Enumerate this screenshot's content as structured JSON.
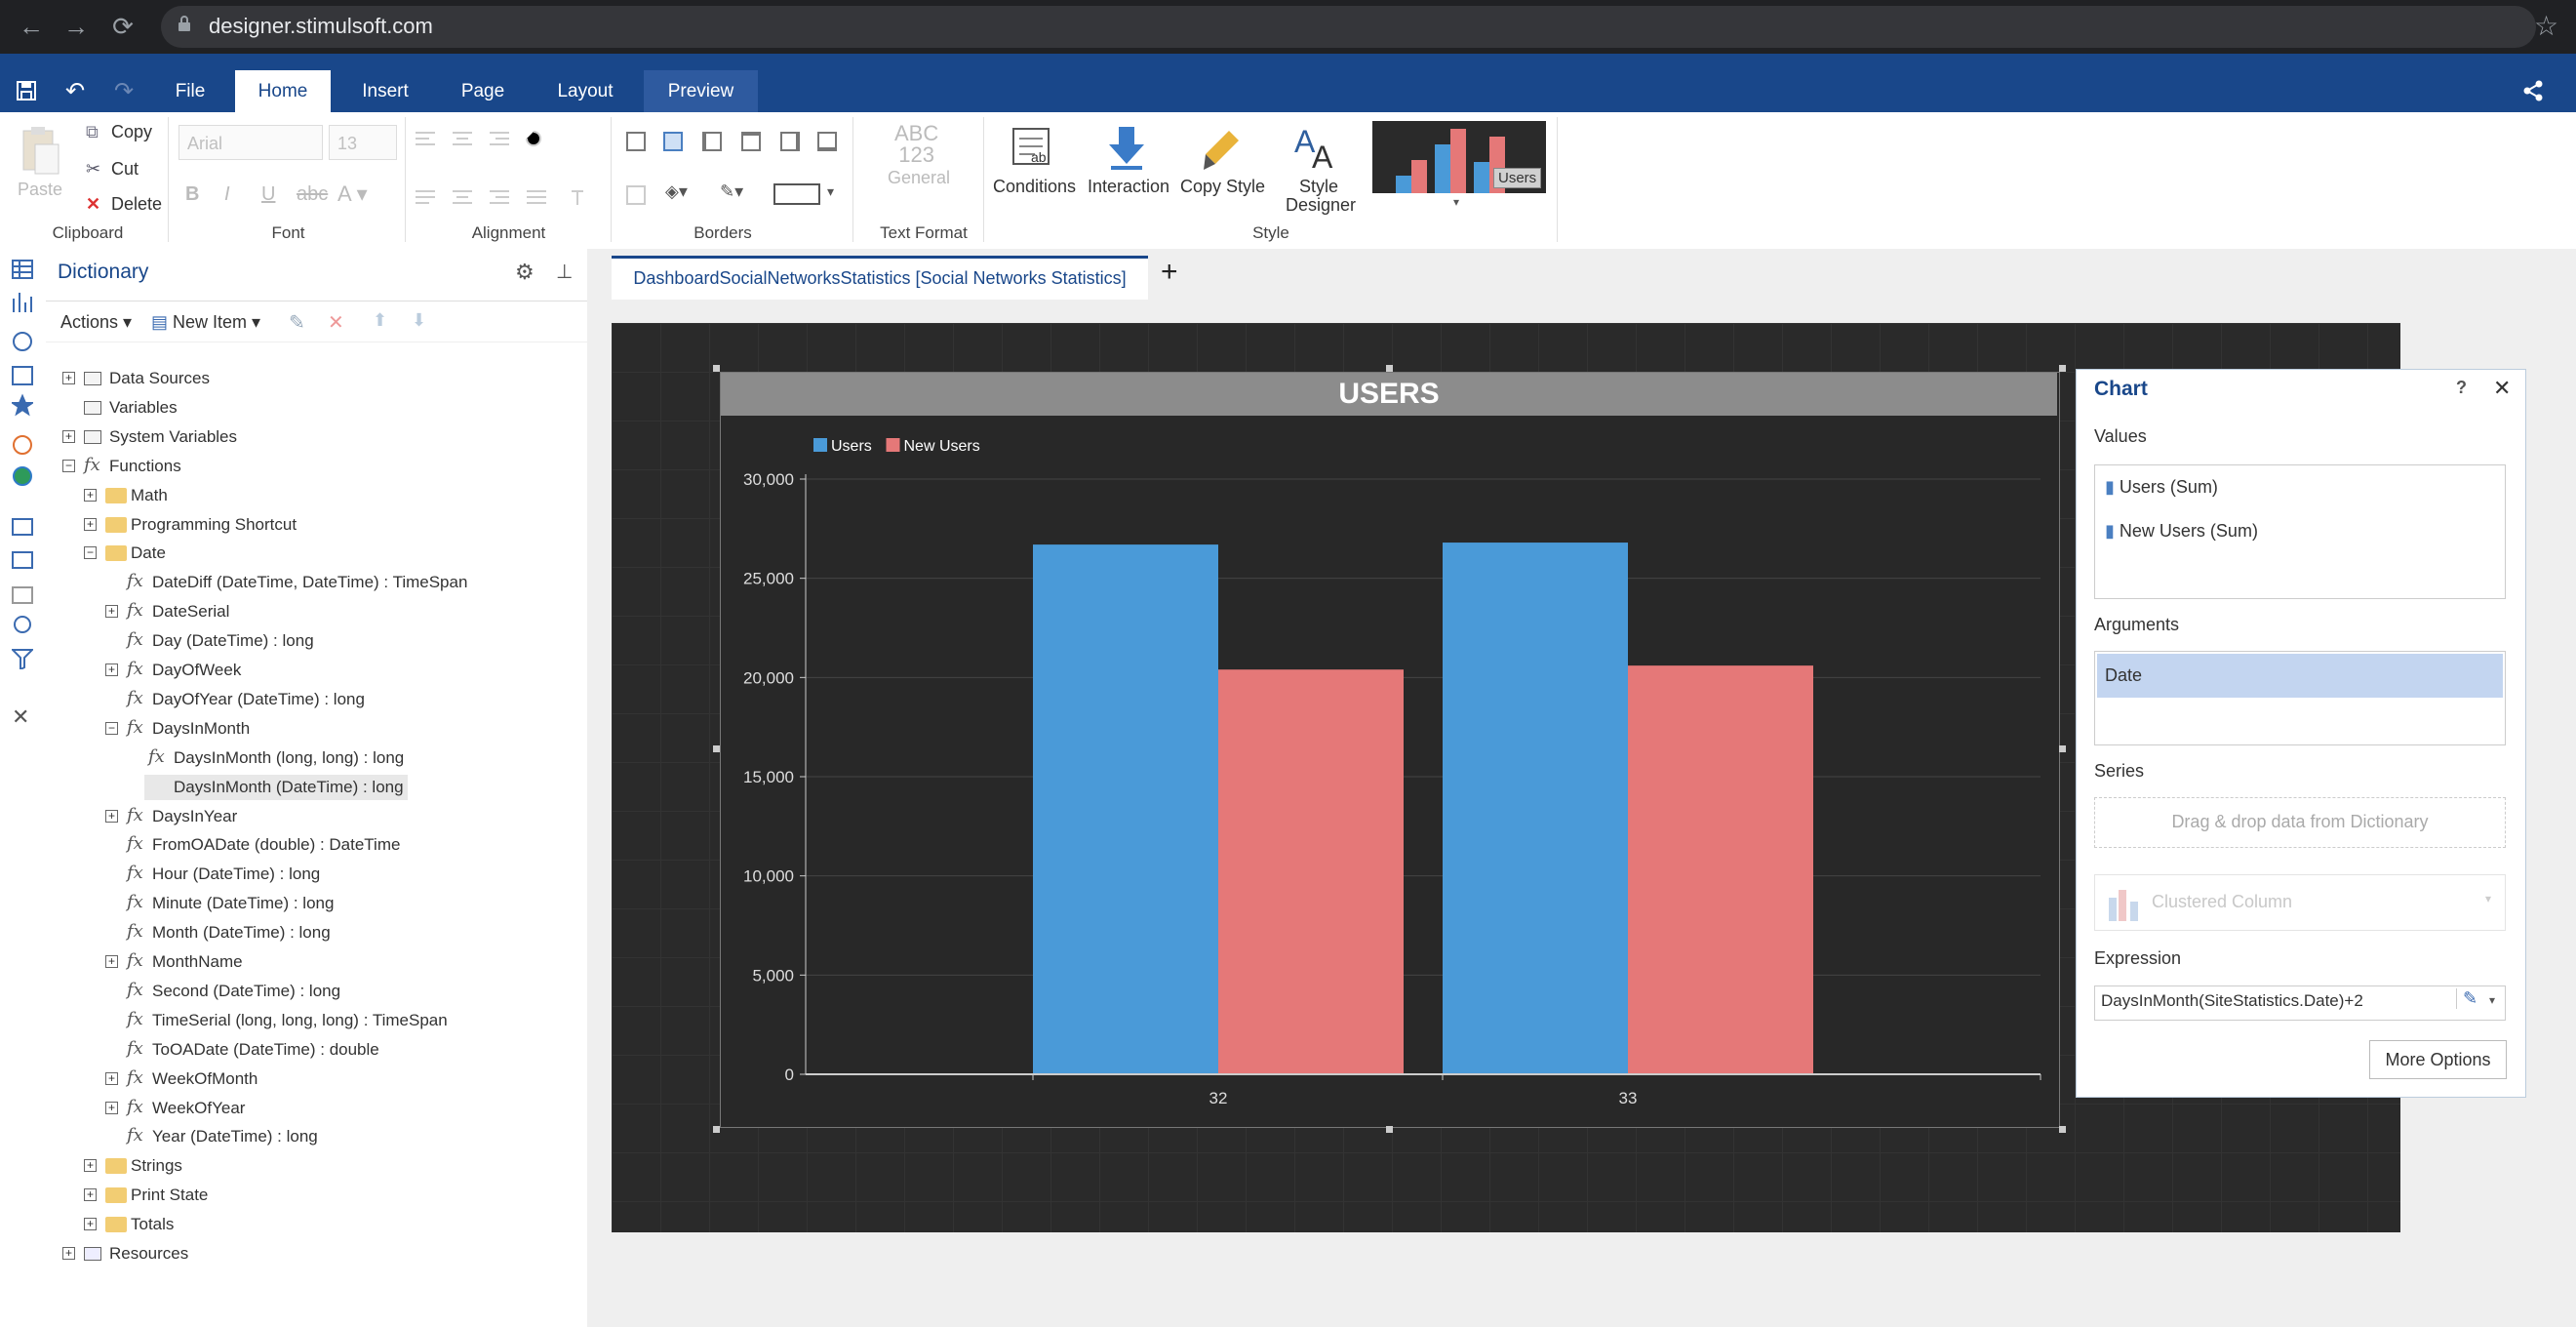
{
  "browser": {
    "url": "designer.stimulsoft.com"
  },
  "app": {
    "tabs": [
      "File",
      "Home",
      "Insert",
      "Page",
      "Layout",
      "Preview"
    ]
  },
  "ribbon": {
    "clipboard": {
      "paste": "Paste",
      "copy": "Copy",
      "cut": "Cut",
      "delete": "Delete",
      "label": "Clipboard"
    },
    "font": {
      "family": "Arial",
      "size": "13",
      "label": "Font"
    },
    "alignment": {
      "label": "Alignment"
    },
    "borders": {
      "label": "Borders"
    },
    "text_format": {
      "preview": "ABC\n123",
      "value": "General",
      "label": "Text Format"
    },
    "style": {
      "conditions": "Conditions",
      "interaction": "Interaction",
      "copy_style": "Copy Style",
      "style_designer_1": "Style",
      "style_designer_2": "Designer",
      "preview_badge": "Users",
      "label": "Style"
    }
  },
  "dictionary": {
    "title": "Dictionary",
    "actions": "Actions",
    "new_item": "New Item",
    "tree": [
      {
        "label": "Data Sources",
        "level": 0,
        "exp": "+",
        "icon": "datasource"
      },
      {
        "label": "Variables",
        "level": 0,
        "exp": "",
        "icon": "var"
      },
      {
        "label": "System Variables",
        "level": 0,
        "exp": "+",
        "icon": "sysvar"
      },
      {
        "label": "Functions",
        "level": 0,
        "exp": "-",
        "icon": "fx"
      },
      {
        "label": "Math",
        "level": 1,
        "exp": "+",
        "icon": "folder"
      },
      {
        "label": "Programming Shortcut",
        "level": 1,
        "exp": "+",
        "icon": "folder"
      },
      {
        "label": "Date",
        "level": 1,
        "exp": "-",
        "icon": "folder"
      },
      {
        "label": "DateDiff (DateTime, DateTime) : TimeSpan",
        "level": 2,
        "exp": "",
        "icon": "fx"
      },
      {
        "label": "DateSerial",
        "level": 2,
        "exp": "+",
        "icon": "fx"
      },
      {
        "label": "Day (DateTime) : long",
        "level": 2,
        "exp": "",
        "icon": "fx"
      },
      {
        "label": "DayOfWeek",
        "level": 2,
        "exp": "+",
        "icon": "fx"
      },
      {
        "label": "DayOfYear (DateTime) : long",
        "level": 2,
        "exp": "",
        "icon": "fx"
      },
      {
        "label": "DaysInMonth",
        "level": 2,
        "exp": "-",
        "icon": "fx"
      },
      {
        "label": "DaysInMonth (long, long) : long",
        "level": 3,
        "exp": "",
        "icon": "fx"
      },
      {
        "label": "DaysInMonth (DateTime) : long",
        "level": 3,
        "exp": "",
        "icon": "fx",
        "selected": true
      },
      {
        "label": "DaysInYear",
        "level": 2,
        "exp": "+",
        "icon": "fx"
      },
      {
        "label": "FromOADate (double) : DateTime",
        "level": 2,
        "exp": "",
        "icon": "fx"
      },
      {
        "label": "Hour (DateTime) : long",
        "level": 2,
        "exp": "",
        "icon": "fx"
      },
      {
        "label": "Minute (DateTime) : long",
        "level": 2,
        "exp": "",
        "icon": "fx"
      },
      {
        "label": "Month (DateTime) : long",
        "level": 2,
        "exp": "",
        "icon": "fx"
      },
      {
        "label": "MonthName",
        "level": 2,
        "exp": "+",
        "icon": "fx"
      },
      {
        "label": "Second (DateTime) : long",
        "level": 2,
        "exp": "",
        "icon": "fx"
      },
      {
        "label": "TimeSerial (long, long, long) : TimeSpan",
        "level": 2,
        "exp": "",
        "icon": "fx"
      },
      {
        "label": "ToOADate (DateTime) : double",
        "level": 2,
        "exp": "",
        "icon": "fx"
      },
      {
        "label": "WeekOfMonth",
        "level": 2,
        "exp": "+",
        "icon": "fx"
      },
      {
        "label": "WeekOfYear",
        "level": 2,
        "exp": "+",
        "icon": "fx"
      },
      {
        "label": "Year (DateTime) : long",
        "level": 2,
        "exp": "",
        "icon": "fx"
      },
      {
        "label": "Strings",
        "level": 1,
        "exp": "+",
        "icon": "folder"
      },
      {
        "label": "Print State",
        "level": 1,
        "exp": "+",
        "icon": "folder"
      },
      {
        "label": "Totals",
        "level": 1,
        "exp": "+",
        "icon": "folder"
      },
      {
        "label": "Resources",
        "level": 0,
        "exp": "+",
        "icon": "resource"
      }
    ]
  },
  "document": {
    "tab": "DashboardSocialNetworksStatistics [Social Networks Statistics]",
    "add": "+"
  },
  "chart_data": {
    "type": "bar",
    "title": "USERS",
    "categories": [
      "32",
      "33"
    ],
    "series": [
      {
        "name": "Users",
        "color": "#4a9ad8",
        "values": [
          26700,
          26800
        ]
      },
      {
        "name": "New Users",
        "color": "#e57878",
        "values": [
          20400,
          20600
        ]
      }
    ],
    "yticks": [
      "0",
      "5,000",
      "10,000",
      "15,000",
      "20,000",
      "25,000",
      "30,000"
    ],
    "ylim": [
      0,
      30000
    ],
    "legend": "top-left",
    "grid": true
  },
  "panel": {
    "title": "Chart",
    "help": "?",
    "close": "✕",
    "values_label": "Values",
    "values": [
      "Users (Sum)",
      "New Users (Sum)"
    ],
    "arguments_label": "Arguments",
    "argument": "Date",
    "series_label": "Series",
    "series_placeholder": "Drag & drop data from Dictionary",
    "chart_type": "Clustered Column",
    "expression_label": "Expression",
    "expression": "DaysInMonth(SiteStatistics.Date)+2",
    "more_options": "More Options"
  }
}
